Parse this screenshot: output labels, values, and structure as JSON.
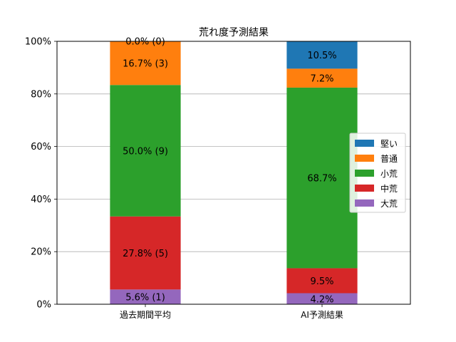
{
  "chart_data": {
    "type": "bar",
    "stacked": true,
    "title": "荒れ度予測結果",
    "categories": [
      "過去期間平均",
      "AI予測結果"
    ],
    "ylim": [
      0,
      100
    ],
    "yticks": [
      "0%",
      "20%",
      "40%",
      "60%",
      "80%",
      "100%"
    ],
    "grid": "y",
    "legend_position": "right",
    "series": [
      {
        "name": "大荒",
        "color": "#9467bd",
        "values": [
          5.6,
          4.2
        ],
        "labels": [
          "5.6% (1)",
          "4.2%"
        ]
      },
      {
        "name": "中荒",
        "color": "#d62728",
        "values": [
          27.8,
          9.5
        ],
        "labels": [
          "27.8% (5)",
          "9.5%"
        ]
      },
      {
        "name": "小荒",
        "color": "#2ca02c",
        "values": [
          50.0,
          68.7
        ],
        "labels": [
          "50.0% (9)",
          "68.7%"
        ]
      },
      {
        "name": "普通",
        "color": "#ff7f0e",
        "values": [
          16.7,
          7.2
        ],
        "labels": [
          "16.7% (3)",
          "7.2%"
        ]
      },
      {
        "name": "堅い",
        "color": "#1f77b4",
        "values": [
          0.0,
          10.5
        ],
        "labels": [
          "0.0% (0)",
          "10.5%"
        ]
      }
    ],
    "legend_order": [
      "堅い",
      "普通",
      "小荒",
      "中荒",
      "大荒"
    ]
  }
}
